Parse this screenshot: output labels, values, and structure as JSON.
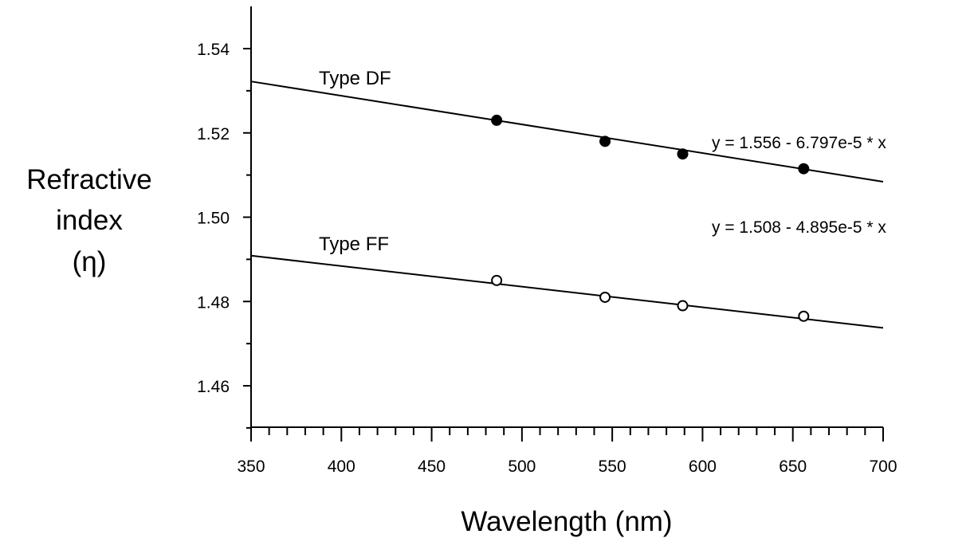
{
  "chart_data": {
    "type": "scatter",
    "xlabel": "Wavelength (nm)",
    "ylabel_lines": [
      "Refractive",
      "index",
      "(η)"
    ],
    "xlim": [
      350,
      700
    ],
    "ylim": [
      1.45,
      1.55
    ],
    "xticks": [
      "350",
      "400",
      "450",
      "500",
      "550",
      "600",
      "650",
      "700"
    ],
    "yticks": [
      "1.46",
      "1.48",
      "1.50",
      "1.52",
      "1.54"
    ],
    "grid": false,
    "series": [
      {
        "name": "Type DF",
        "marker": "filled-circle",
        "x": [
          486,
          546,
          589,
          656
        ],
        "y": [
          1.523,
          1.518,
          1.515,
          1.5115
        ],
        "fit": {
          "intercept": 1.556,
          "slope": -6.797e-05,
          "equation": "y = 1.556 - 6.797e-5 * x"
        }
      },
      {
        "name": "Type FF",
        "marker": "open-circle",
        "x": [
          486,
          546,
          589,
          656
        ],
        "y": [
          1.485,
          1.481,
          1.479,
          1.4765
        ],
        "fit": {
          "intercept": 1.508,
          "slope": -4.895e-05,
          "equation": "y = 1.508 - 4.895e-5 * x"
        }
      }
    ]
  }
}
